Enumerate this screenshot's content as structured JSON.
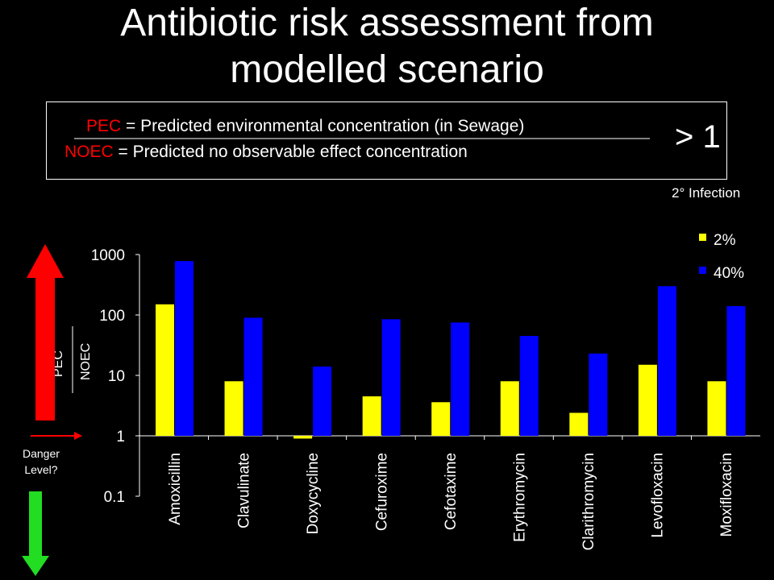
{
  "title_line1": "Antibiotic risk assessment from",
  "title_line2": "modelled scenario",
  "definitions": {
    "pec_abbr": "PEC",
    "pec_text": " = Predicted environmental concentration (in Sewage)",
    "noec_abbr": "NOEC",
    "noec_text": " = Predicted no observable effect concentration",
    "ratio_text": "> 1"
  },
  "infection_label": "2° Infection",
  "side": {
    "pec_label": "PEC",
    "noec_label": "NOEC",
    "danger_line1": "Danger",
    "danger_line2": "Level?"
  },
  "colors": {
    "series_2pct": "#ffff00",
    "series_40pct": "#0000ff",
    "up_arrow": "#ff0000",
    "down_arrow": "#22dd22"
  },
  "chart_data": {
    "type": "bar",
    "yscale": "log",
    "ylim": [
      0.1,
      1000
    ],
    "yticks": [
      "1000",
      "100",
      "10",
      "1",
      "0.1"
    ],
    "ylabel": "PEC/NOEC",
    "legend_position": "top-right",
    "categories": [
      "Amoxicillin",
      "Clavulinate",
      "Doxycycline",
      "Cefuroxime",
      "Cefotaxime",
      "Erythromycin",
      "Clarithromycin",
      "Levofloxacin",
      "Moxifloxacin"
    ],
    "series": [
      {
        "name": "2%",
        "color": "#ffff00",
        "values": [
          150,
          8,
          0.9,
          4.5,
          3.6,
          8,
          2.4,
          15,
          8
        ]
      },
      {
        "name": "40%",
        "color": "#0000ff",
        "values": [
          780,
          90,
          14,
          85,
          75,
          45,
          23,
          300,
          140
        ]
      }
    ]
  }
}
